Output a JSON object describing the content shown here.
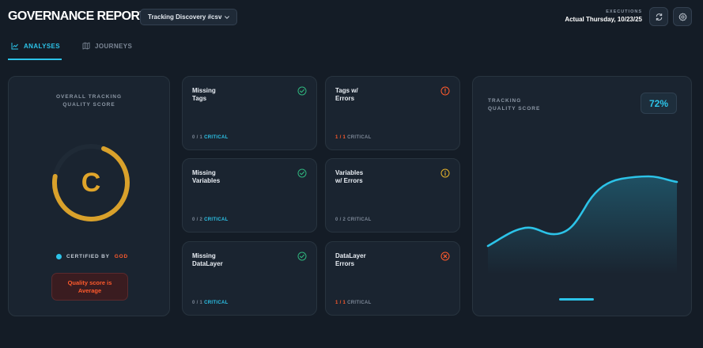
{
  "header": {
    "title": "GOVERNANCE REPORT",
    "source_select": "Tracking Discovery #csv",
    "executions_caption": "EXECUTIONS",
    "executions_value": "Actual Thursday, 10/23/25"
  },
  "tabs": [
    {
      "label": "ANALYSES",
      "active": true
    },
    {
      "label": "JOURNEYS",
      "active": false
    }
  ],
  "score": {
    "title_line1": "OVERALL TRACKING",
    "title_line2": "QUALITY SCORE",
    "grade": "C",
    "gauge_fraction": 0.72,
    "certified_by_label": "CERTIFIED BY",
    "certified_by_value": "GOD",
    "quality_badge": "Quality score is\nAverage"
  },
  "metrics": [
    {
      "title": "Missing\nTags",
      "ratio": "0 / 1",
      "level": "CRITICAL",
      "status": "ok"
    },
    {
      "title": "Tags w/\nErrors",
      "ratio": "1 / 1",
      "level": "CRITICAL",
      "status": "warning-red"
    },
    {
      "title": "Missing\nVariables",
      "ratio": "0 / 2",
      "level": "CRITICAL",
      "status": "ok"
    },
    {
      "title": "Variables\nw/ Errors",
      "ratio": "0 / 2",
      "level": "CRITICAL",
      "status": "warning-yellow"
    },
    {
      "title": "Missing\nDataLayer",
      "ratio": "0 / 1",
      "level": "CRITICAL",
      "status": "ok"
    },
    {
      "title": "DataLayer\nErrors",
      "ratio": "1 / 1",
      "level": "CRITICAL",
      "status": "error"
    }
  ],
  "trend": {
    "title_line1": "TRACKING",
    "title_line2": "QUALITY SCORE",
    "value": "72%"
  },
  "colors": {
    "accent": "#2cc3e8",
    "grade": "#e0a52a",
    "error": "#ff5a2c",
    "ok": "#2fb57e",
    "warning": "#e8b42a"
  }
}
